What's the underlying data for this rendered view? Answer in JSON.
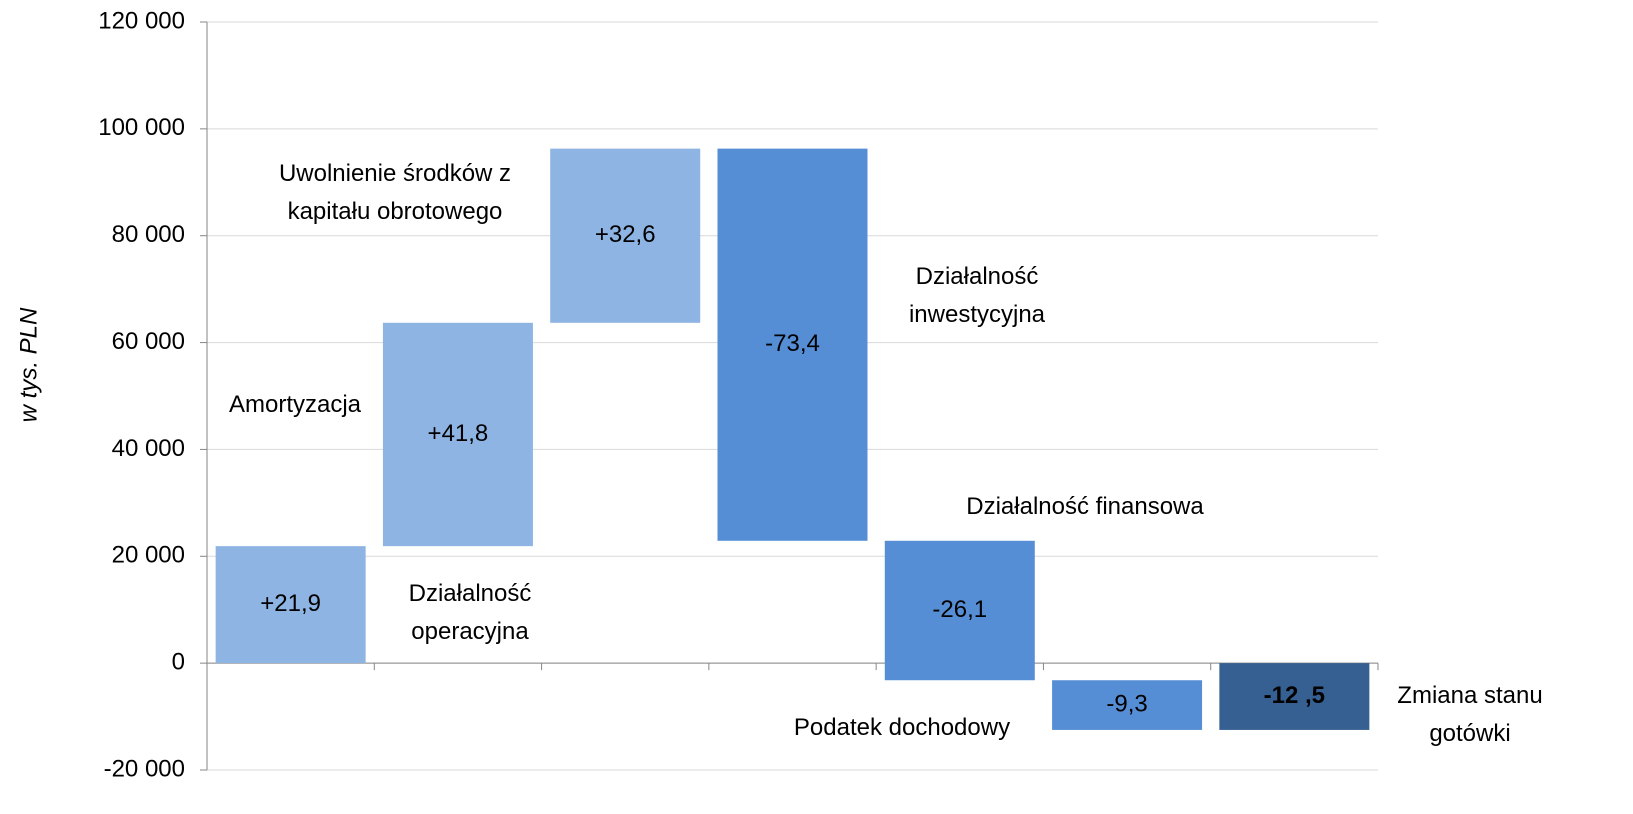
{
  "chart_data": {
    "type": "waterfall",
    "y_label": "w tys. PLN",
    "categories": [
      "Działalność operacyjna",
      "Amortyzacja",
      "Uwolnienie środków z kapitału obrotowego",
      "Działalność inwestycyjna",
      "Działalność finansowa",
      "Podatek dochodowy",
      "Zmiana stanu gotówki"
    ],
    "values": [
      21900,
      41800,
      32600,
      -73400,
      -26100,
      -9300,
      -12500
    ],
    "value_labels": [
      "+21,9",
      "+41,8",
      "+32,6",
      "-73,4",
      "-26,1",
      "-9,3",
      "-12 ,5"
    ],
    "measure": [
      "relative",
      "relative",
      "relative",
      "relative",
      "relative",
      "relative",
      "total"
    ],
    "colors": [
      "#8eb4e3",
      "#8eb4e3",
      "#8eb4e3",
      "#558ed5",
      "#558ed5",
      "#558ed5",
      "#376092"
    ],
    "ylim": [
      -20000,
      120000
    ],
    "yticks": [
      {
        "value": -20000,
        "label": "-20 000"
      },
      0,
      {
        "value": 20000,
        "label": "20 000"
      },
      {
        "value": 40000,
        "label": "40 000"
      },
      {
        "value": 60000,
        "label": "60 000"
      },
      {
        "value": 80000,
        "label": "80 000"
      },
      {
        "value": 100000,
        "label": "100 000"
      },
      {
        "value": 120000,
        "label": "120 000"
      }
    ],
    "grid": true
  }
}
